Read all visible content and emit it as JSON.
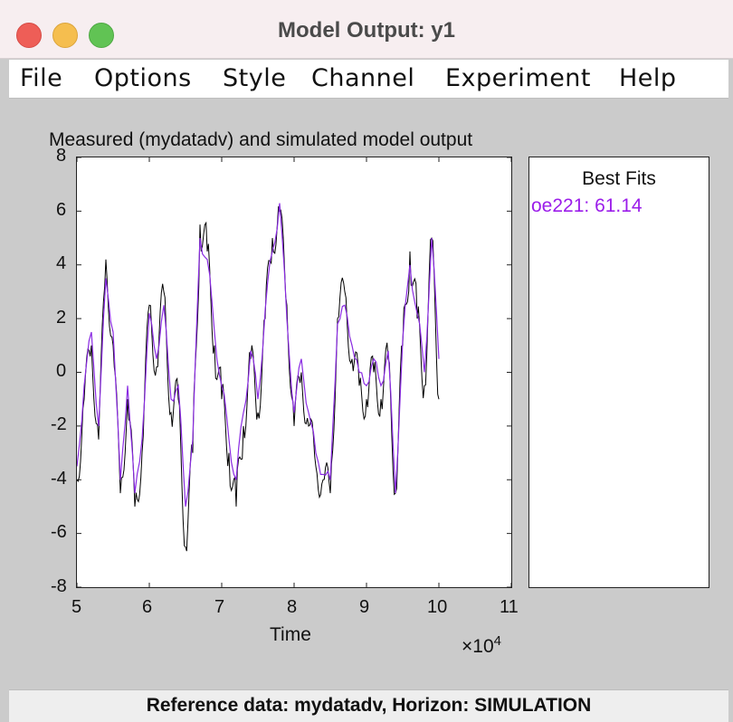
{
  "window": {
    "title": "Model Output: y1"
  },
  "menu": [
    "File",
    "Options",
    "Style",
    "Channel",
    "Experiment",
    "Help"
  ],
  "plot": {
    "title": "Measured (mydatadv) and simulated model output",
    "y_ticks": [
      "8",
      "6",
      "4",
      "2",
      "0",
      "-2",
      "-4",
      "-6",
      "-8"
    ],
    "x_ticks": [
      "5",
      "6",
      "7",
      "8",
      "9",
      "10",
      "11"
    ],
    "x_label": "Time",
    "x_exponent_base": "×10",
    "x_exponent_power": "4"
  },
  "legend": {
    "title": "Best Fits",
    "entry": "oe221: 61.14",
    "entry_color": "#9b1dea"
  },
  "status": "Reference data:  mydatadv, Horizon: SIMULATION",
  "colors": {
    "measured": "#000000",
    "simulated": "#8a2be2"
  },
  "chart_data": {
    "type": "line",
    "title": "Measured (mydatadv) and simulated model output",
    "xlabel": "Time",
    "ylabel": "",
    "x_scale_note": "×10^4",
    "xlim": [
      5,
      11
    ],
    "ylim": [
      -8,
      8
    ],
    "grid": false,
    "legend_placement": "separate panel (right)",
    "x": [
      5.0,
      5.1,
      5.2,
      5.3,
      5.4,
      5.5,
      5.6,
      5.7,
      5.8,
      5.9,
      6.0,
      6.1,
      6.2,
      6.3,
      6.4,
      6.5,
      6.6,
      6.7,
      6.8,
      6.9,
      7.0,
      7.1,
      7.2,
      7.3,
      7.4,
      7.5,
      7.6,
      7.7,
      7.8,
      7.9,
      8.0,
      8.1,
      8.2,
      8.3,
      8.4,
      8.5,
      8.6,
      8.7,
      8.8,
      8.9,
      9.0,
      9.1,
      9.2,
      9.3,
      9.4,
      9.5,
      9.6,
      9.7,
      9.8,
      9.9,
      10.0
    ],
    "series": [
      {
        "name": "mydatadv",
        "values": [
          -4.0,
          -1.0,
          1.0,
          -2.5,
          4.2,
          1.0,
          -4.5,
          -1.0,
          -5.0,
          -3.0,
          2.5,
          0.2,
          3.0,
          -1.5,
          -1.0,
          -6.5,
          -3.0,
          5.5,
          4.5,
          1.0,
          -1.0,
          -3.0,
          -5.0,
          -2.0,
          0.5,
          -1.5,
          2.0,
          5.0,
          6.0,
          2.5,
          -2.0,
          0.0,
          -2.0,
          -3.5,
          -4.0,
          -4.5,
          2.0,
          3.0,
          0.5,
          -0.5,
          -1.0,
          0.0,
          -1.0,
          0.5,
          -4.5,
          1.0,
          4.5,
          2.0,
          -0.5,
          5.0,
          -1.0
        ]
      },
      {
        "name": "oe221",
        "values": [
          -3.5,
          -0.5,
          1.5,
          -2.0,
          3.5,
          1.5,
          -4.0,
          -0.5,
          -4.5,
          -2.5,
          2.2,
          0.5,
          2.5,
          -1.0,
          -0.5,
          -5.0,
          -2.5,
          5.0,
          4.2,
          1.5,
          -0.5,
          -2.5,
          -4.0,
          -1.5,
          0.8,
          -1.0,
          2.3,
          4.5,
          6.3,
          2.0,
          -1.5,
          0.5,
          -1.5,
          -3.0,
          -3.8,
          -4.0,
          1.8,
          2.5,
          1.0,
          0.0,
          -0.5,
          0.5,
          -0.5,
          0.8,
          -4.5,
          1.2,
          4.0,
          2.2,
          0.0,
          5.0,
          0.5
        ]
      }
    ]
  }
}
